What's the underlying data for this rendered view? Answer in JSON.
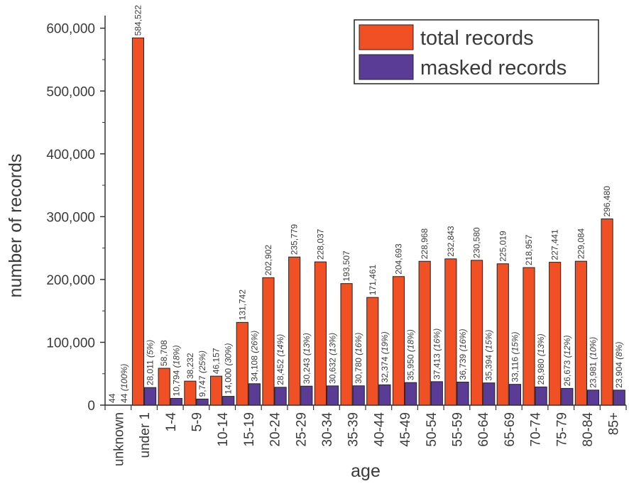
{
  "chart_data": {
    "type": "bar",
    "xlabel": "age",
    "ylabel": "number of records",
    "ylim": [
      0,
      620000
    ],
    "yticks": [
      0,
      100000,
      200000,
      300000,
      400000,
      500000,
      600000
    ],
    "ytick_labels": [
      "0",
      "100,000",
      "200,000",
      "300,000",
      "400,000",
      "500,000",
      "600,000"
    ],
    "grid": false,
    "legend_position": "top-right",
    "categories": [
      "unknown",
      "under 1",
      "1-4",
      "5-9",
      "10-14",
      "15-19",
      "20-24",
      "25-29",
      "30-34",
      "35-39",
      "40-44",
      "45-49",
      "50-54",
      "55-59",
      "60-64",
      "65-69",
      "70-74",
      "75-79",
      "80-84",
      "85+"
    ],
    "series": [
      {
        "name": "total records",
        "color": "#f05023",
        "values": [
          44,
          584522,
          58708,
          38232,
          46157,
          131742,
          202902,
          235779,
          228037,
          193507,
          171461,
          204693,
          228968,
          232843,
          230580,
          225019,
          218957,
          227441,
          229084,
          296480
        ],
        "labels": [
          "44",
          "584,522",
          "58,708",
          "38,232",
          "46,157",
          "131,742",
          "202,902",
          "235,779",
          "228,037",
          "193,507",
          "171,461",
          "204,693",
          "228,968",
          "232,843",
          "230,580",
          "225,019",
          "218,957",
          "227,441",
          "229,084",
          "296,480"
        ]
      },
      {
        "name": "masked records",
        "color": "#5a3c96",
        "values": [
          44,
          28011,
          10794,
          9747,
          14000,
          34108,
          28452,
          30243,
          30632,
          30780,
          32374,
          35950,
          37413,
          36739,
          35394,
          33116,
          28980,
          26673,
          23981,
          23904
        ],
        "labels": [
          "44",
          "28,011",
          "10,794",
          "9,747",
          "14,000",
          "34,108",
          "28,452",
          "30,243",
          "30,632",
          "30,780",
          "32,374",
          "35,950",
          "37,413",
          "36,739",
          "35,394",
          "33,116",
          "28,980",
          "26,673",
          "23,981",
          "23,904"
        ],
        "percent_labels": [
          "(100%)",
          "(5%)",
          "(18%)",
          "(25%)",
          "(30%)",
          "(26%)",
          "(14%)",
          "(13%)",
          "(13%)",
          "(16%)",
          "(19%)",
          "(18%)",
          "(16%)",
          "(16%)",
          "(15%)",
          "(15%)",
          "(13%)",
          "(12%)",
          "(10%)",
          "(8%)"
        ]
      }
    ]
  }
}
